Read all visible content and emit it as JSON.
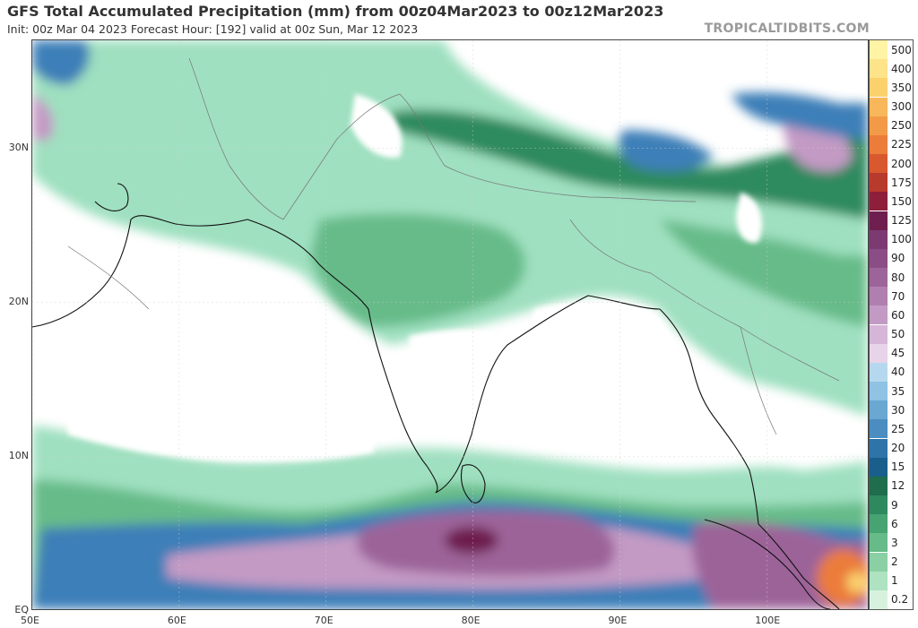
{
  "header": {
    "title": "GFS Total Accumulated Precipitation (mm) from 00z04Mar2023 to 00z12Mar2023",
    "subtitle": "Init: 00z Mar 04 2023   Forecast Hour: [192]   valid at 00z Sun, Mar 12 2023",
    "watermark": "TROPICALTIDBITS.COM"
  },
  "map": {
    "extent": {
      "lon_min": 50,
      "lon_max": 107,
      "lat_min": 0,
      "lat_max": 37
    },
    "lat_ticks": [
      {
        "label": "30N",
        "lat": 30
      },
      {
        "label": "20N",
        "lat": 20
      },
      {
        "label": "10N",
        "lat": 10
      },
      {
        "label": "EQ",
        "lat": 0
      }
    ],
    "lon_ticks": [
      {
        "label": "50E",
        "lon": 50
      },
      {
        "label": "60E",
        "lon": 60
      },
      {
        "label": "70E",
        "lon": 70
      },
      {
        "label": "80E",
        "lon": 80
      },
      {
        "label": "90E",
        "lon": 90
      },
      {
        "label": "100E",
        "lon": 100
      }
    ]
  },
  "legend": {
    "levels": [
      {
        "label": "500",
        "color": "#fff3a6"
      },
      {
        "label": "400",
        "color": "#fde38a"
      },
      {
        "label": "350",
        "color": "#fbd16e"
      },
      {
        "label": "300",
        "color": "#f8b75a"
      },
      {
        "label": "250",
        "color": "#f29a48"
      },
      {
        "label": "225",
        "color": "#eb7c3a"
      },
      {
        "label": "200",
        "color": "#d8592e"
      },
      {
        "label": "175",
        "color": "#b83a2c"
      },
      {
        "label": "150",
        "color": "#8d1f3a"
      },
      {
        "label": "125",
        "color": "#6e1f4f"
      },
      {
        "label": "100",
        "color": "#7c3a73"
      },
      {
        "label": "90",
        "color": "#8b4d86"
      },
      {
        "label": "80",
        "color": "#9c6499"
      },
      {
        "label": "70",
        "color": "#b07fb0"
      },
      {
        "label": "60",
        "color": "#c39ac4"
      },
      {
        "label": "50",
        "color": "#d6b6d8"
      },
      {
        "label": "45",
        "color": "#e7d4e9"
      },
      {
        "label": "40",
        "color": "#b6d8ee"
      },
      {
        "label": "35",
        "color": "#8fc2e3"
      },
      {
        "label": "30",
        "color": "#6aa8d2"
      },
      {
        "label": "25",
        "color": "#4b8dc0"
      },
      {
        "label": "20",
        "color": "#2f74a9"
      },
      {
        "label": "15",
        "color": "#1a5e8c"
      },
      {
        "label": "12",
        "color": "#1f6d4d"
      },
      {
        "label": "9",
        "color": "#2e8a5e"
      },
      {
        "label": "6",
        "color": "#45a472"
      },
      {
        "label": "3",
        "color": "#66bb89"
      },
      {
        "label": "2",
        "color": "#8ad0a4"
      },
      {
        "label": "1",
        "color": "#aee2c0"
      },
      {
        "label": "0.2",
        "color": "#d6f2de"
      }
    ]
  },
  "colors": {
    "land": "#ffffff",
    "green_light": "#9fe0c0",
    "green_mid": "#66bb89",
    "green_dark": "#2e8a5e",
    "blue": "#3d7fb8",
    "blue_light": "#8fc2e3",
    "purple": "#9c6499",
    "purple_dark": "#6e1f4f",
    "orange": "#eb7c3a",
    "coast": "#111111",
    "border": "#777777"
  }
}
